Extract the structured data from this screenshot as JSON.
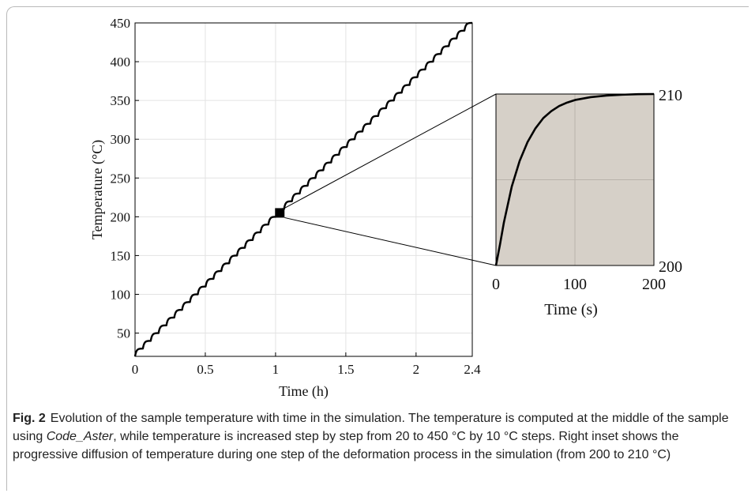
{
  "chart_data": [
    {
      "type": "line",
      "xlabel": "Time (h)",
      "ylabel": "Temperature (°C)",
      "xlim": [
        0,
        2.4
      ],
      "ylim": [
        20,
        450
      ],
      "xticks": [
        0,
        0.5,
        1,
        1.5,
        2,
        2.4
      ],
      "xtick_labels": [
        "0",
        "0.5",
        "1",
        "1.5",
        "2",
        "2.4"
      ],
      "yticks": [
        50,
        100,
        150,
        200,
        250,
        300,
        350,
        400,
        450
      ],
      "ytick_labels": [
        "50",
        "100",
        "150",
        "200",
        "250",
        "300",
        "350",
        "400",
        "450"
      ],
      "grid": true,
      "series": [
        {
          "start_temperature": 20,
          "end_temperature": 450,
          "step_size": 10,
          "x_start": 0,
          "x_end": 2.4
        }
      ],
      "highlight": {
        "x": 1.03,
        "y": 205
      }
    },
    {
      "type": "line",
      "xlabel": "Time (s)",
      "ylabel": "",
      "xlim": [
        0,
        200
      ],
      "ylim": [
        200,
        210
      ],
      "xticks": [
        0,
        100,
        200
      ],
      "xtick_labels": [
        "0",
        "100",
        "200"
      ],
      "yticks": [
        200,
        210
      ],
      "ytick_labels": [
        "200",
        "210"
      ],
      "grid": true,
      "background": "#d6d0c8",
      "series": [
        {
          "x": [
            0,
            5,
            10,
            20,
            30,
            40,
            50,
            60,
            70,
            80,
            90,
            100,
            120,
            140,
            160,
            180,
            200
          ],
          "y": [
            200.0,
            201.2,
            202.5,
            204.6,
            206.1,
            207.2,
            208.0,
            208.6,
            209.0,
            209.3,
            209.5,
            209.65,
            209.82,
            209.91,
            209.96,
            209.99,
            210.0
          ]
        }
      ]
    }
  ],
  "caption": {
    "label": "Fig. 2",
    "text_before_italic": "Evolution of the sample temperature with time in the simulation. The temperature is computed at the middle of the sample using ",
    "italic": "Code_Aster",
    "text_after_italic": ", while temperature is increased step by step from 20 to 450 °C by 10 °C steps. Right inset shows the progressive diffusion of temperature during one step of the deformation process in the simulation (from 200 to 210 °C)"
  },
  "colors": {
    "line": "#000000",
    "grid": "#e3e3e3",
    "inset_bg": "#d6d0c8",
    "frame": "#b9b9b9"
  }
}
